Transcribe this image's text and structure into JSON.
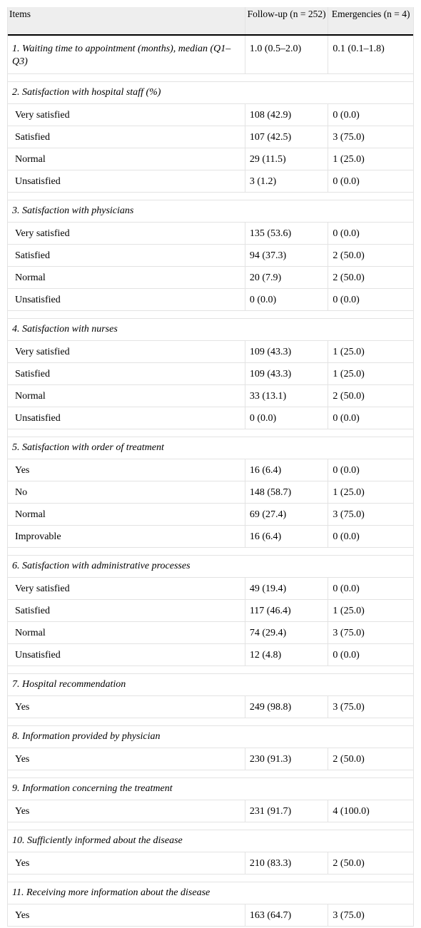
{
  "header": {
    "items": "Items",
    "followup": "Follow-up (n = 252)",
    "emergencies": "Emergencies (n = 4)"
  },
  "sections": [
    {
      "title": "1. Waiting time to appointment (months), median (Q1–Q3)",
      "followup": "1.0 (0.5–2.0)",
      "emergencies": "0.1 (0.1–1.8)",
      "rows": []
    },
    {
      "title": "2. Satisfaction with hospital staff (%)",
      "rows": [
        {
          "label": "Very satisfied",
          "followup": "108 (42.9)",
          "emergencies": "0 (0.0)"
        },
        {
          "label": "Satisfied",
          "followup": "107 (42.5)",
          "emergencies": "3 (75.0)"
        },
        {
          "label": "Normal",
          "followup": "29 (11.5)",
          "emergencies": "1 (25.0)"
        },
        {
          "label": "Unsatisfied",
          "followup": "3 (1.2)",
          "emergencies": "0 (0.0)"
        }
      ]
    },
    {
      "title": "3. Satisfaction with physicians",
      "rows": [
        {
          "label": "Very satisfied",
          "followup": "135 (53.6)",
          "emergencies": "0 (0.0)"
        },
        {
          "label": "Satisfied",
          "followup": "94 (37.3)",
          "emergencies": "2 (50.0)"
        },
        {
          "label": "Normal",
          "followup": "20 (7.9)",
          "emergencies": "2 (50.0)"
        },
        {
          "label": "Unsatisfied",
          "followup": "0 (0.0)",
          "emergencies": "0 (0.0)"
        }
      ]
    },
    {
      "title": "4. Satisfaction with nurses",
      "rows": [
        {
          "label": "Very satisfied",
          "followup": "109 (43.3)",
          "emergencies": "1 (25.0)"
        },
        {
          "label": "Satisfied",
          "followup": "109 (43.3)",
          "emergencies": "1 (25.0)"
        },
        {
          "label": "Normal",
          "followup": "33 (13.1)",
          "emergencies": "2 (50.0)"
        },
        {
          "label": "Unsatisfied",
          "followup": "0 (0.0)",
          "emergencies": "0 (0.0)"
        }
      ]
    },
    {
      "title": "5. Satisfaction with order of treatment",
      "rows": [
        {
          "label": "Yes",
          "followup": "16 (6.4)",
          "emergencies": "0 (0.0)"
        },
        {
          "label": "No",
          "followup": "148 (58.7)",
          "emergencies": "1 (25.0)"
        },
        {
          "label": "Normal",
          "followup": "69 (27.4)",
          "emergencies": "3 (75.0)"
        },
        {
          "label": "Improvable",
          "followup": "16 (6.4)",
          "emergencies": "0 (0.0)"
        }
      ]
    },
    {
      "title": "6. Satisfaction with administrative processes",
      "rows": [
        {
          "label": "Very satisfied",
          "followup": "49 (19.4)",
          "emergencies": "0 (0.0)"
        },
        {
          "label": "Satisfied",
          "followup": "117 (46.4)",
          "emergencies": "1 (25.0)"
        },
        {
          "label": "Normal",
          "followup": "74 (29.4)",
          "emergencies": "3 (75.0)"
        },
        {
          "label": "Unsatisfied",
          "followup": "12 (4.8)",
          "emergencies": "0 (0.0)"
        }
      ]
    },
    {
      "title": "7. Hospital recommendation",
      "rows": [
        {
          "label": "Yes",
          "followup": "249 (98.8)",
          "emergencies": "3 (75.0)"
        }
      ]
    },
    {
      "title": "8. Information provided by physician",
      "rows": [
        {
          "label": "Yes",
          "followup": "230 (91.3)",
          "emergencies": "2 (50.0)"
        }
      ]
    },
    {
      "title": "9. Information concerning the treatment",
      "rows": [
        {
          "label": "Yes",
          "followup": "231 (91.7)",
          "emergencies": "4 (100.0)"
        }
      ]
    },
    {
      "title": "10. Sufficiently informed about the disease",
      "rows": [
        {
          "label": "Yes",
          "followup": "210 (83.3)",
          "emergencies": "2 (50.0)"
        }
      ]
    },
    {
      "title": "11. Receiving more information about the disease",
      "rows": [
        {
          "label": "Yes",
          "followup": "163 (64.7)",
          "emergencies": "3 (75.0)"
        }
      ]
    }
  ]
}
